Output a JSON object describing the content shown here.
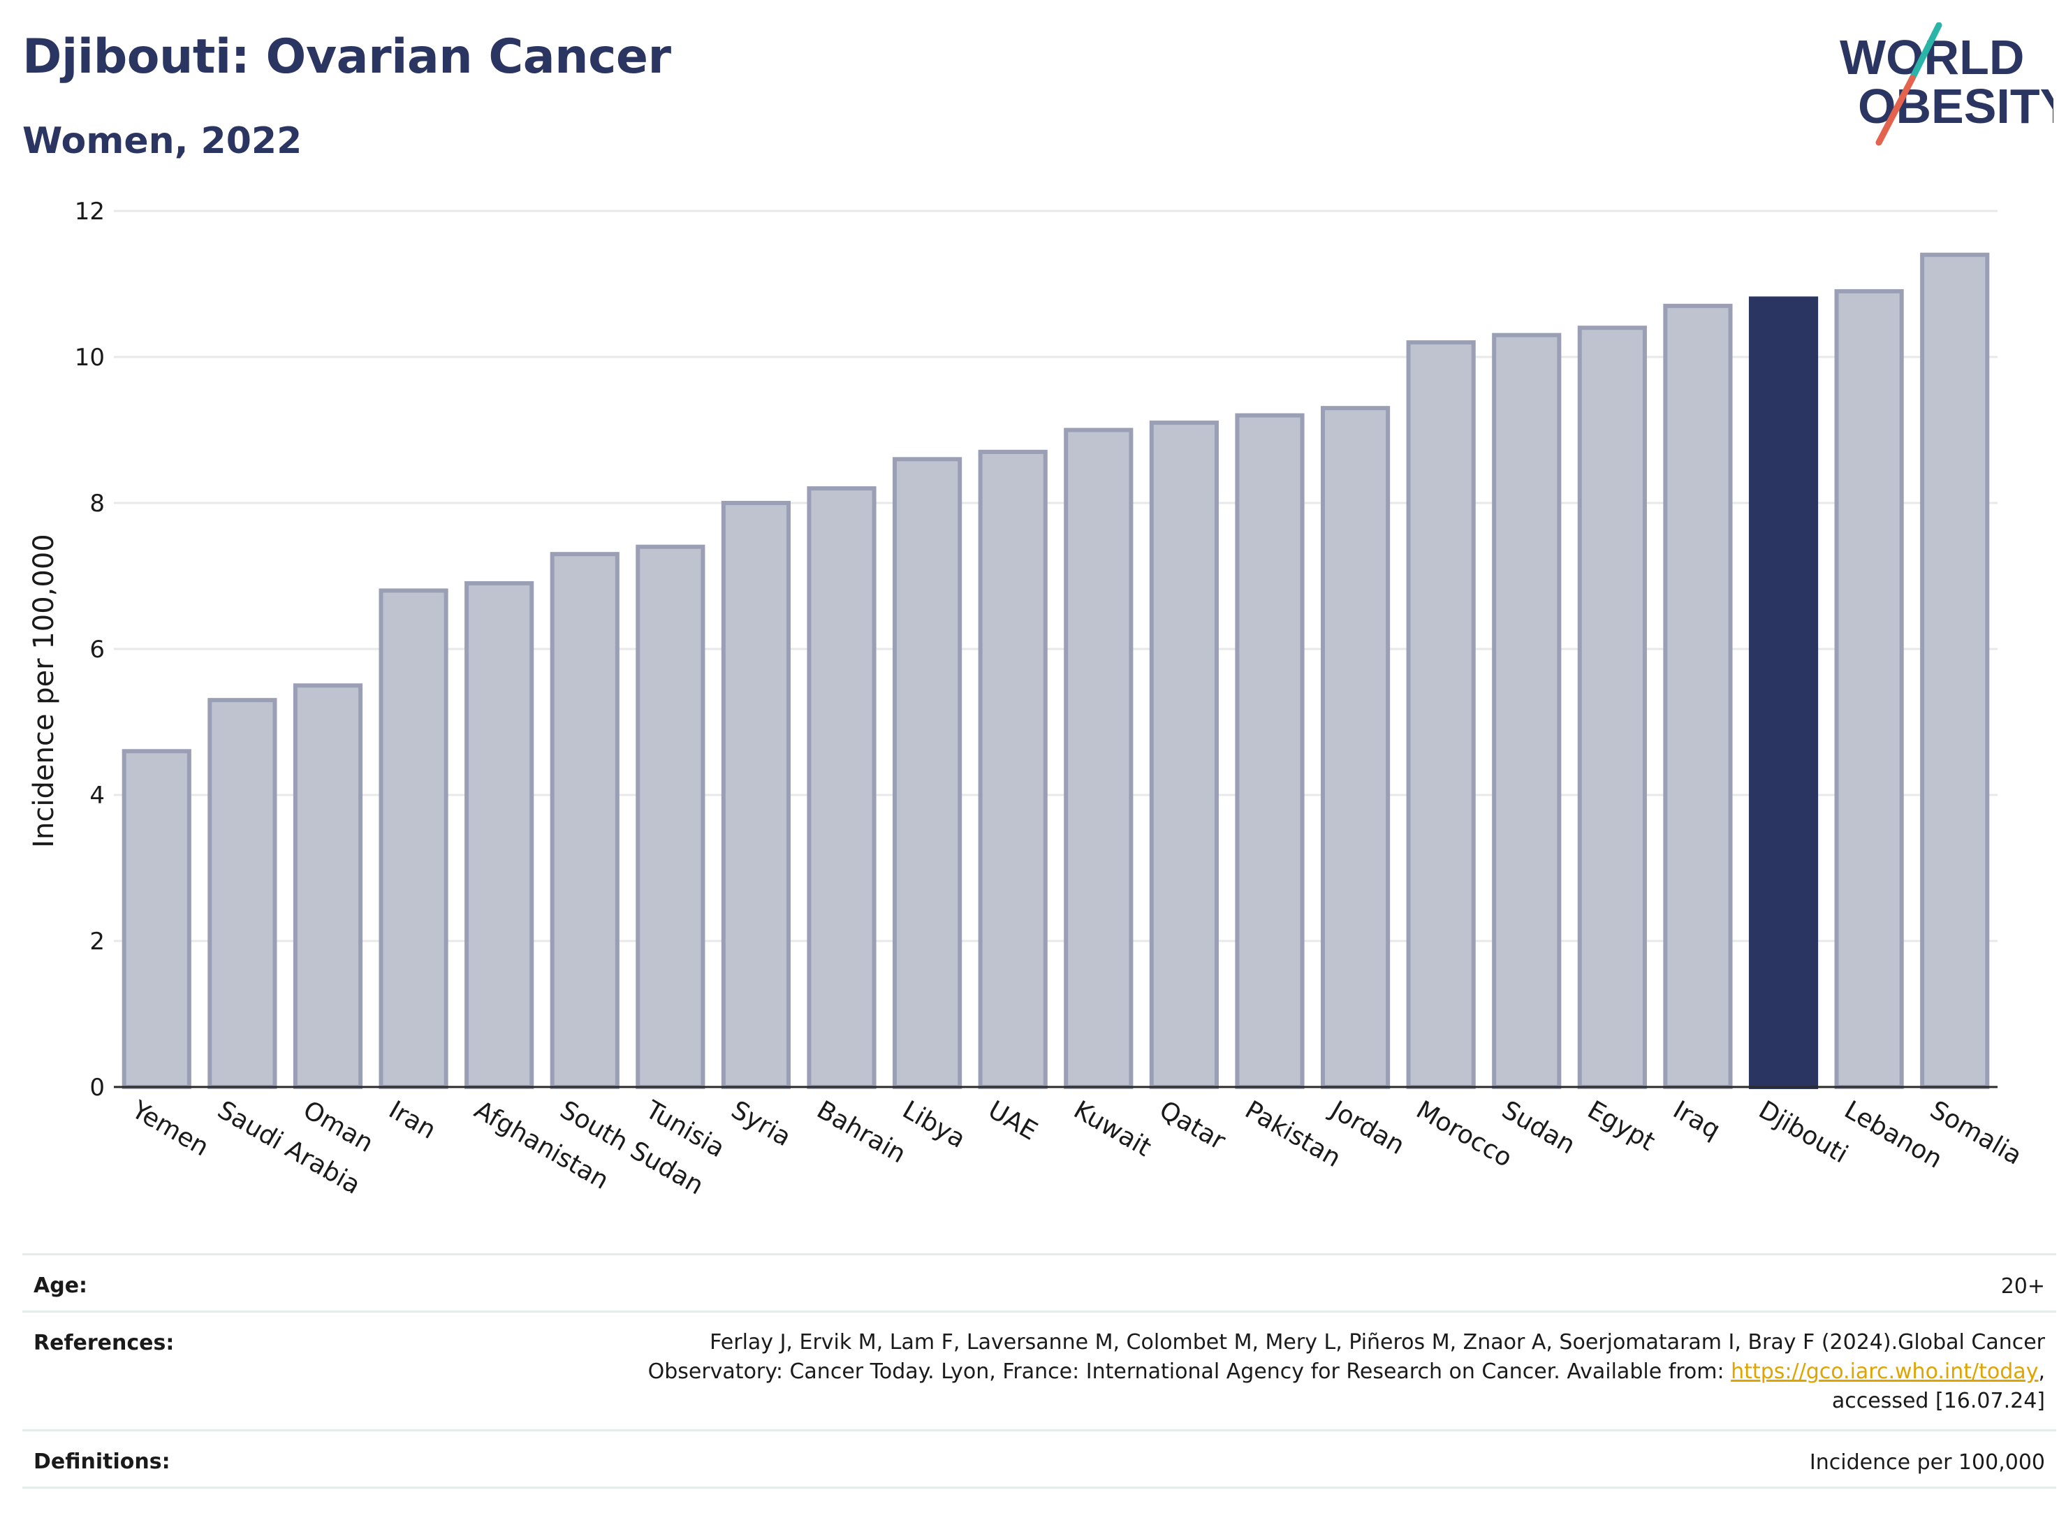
{
  "header": {
    "title": "Djibouti: Ovarian Cancer",
    "subtitle": "Women, 2022"
  },
  "logo": {
    "line1": "WORLD",
    "line2": "OBESITY",
    "colors": {
      "text": "#2b3561",
      "slash_top": "#2bb5a8",
      "slash_bottom": "#e4634f"
    }
  },
  "chart_data": {
    "type": "bar",
    "categories": [
      "Yemen",
      "Saudi Arabia",
      "Oman",
      "Iran",
      "Afghanistan",
      "South Sudan",
      "Tunisia",
      "Syria",
      "Bahrain",
      "Libya",
      "UAE",
      "Kuwait",
      "Qatar",
      "Pakistan",
      "Jordan",
      "Morocco",
      "Sudan",
      "Egypt",
      "Iraq",
      "Djibouti",
      "Lebanon",
      "Somalia"
    ],
    "values": [
      4.6,
      5.3,
      5.5,
      6.8,
      6.9,
      7.3,
      7.4,
      8.0,
      8.2,
      8.6,
      8.7,
      9.0,
      9.1,
      9.2,
      9.3,
      10.2,
      10.3,
      10.4,
      10.7,
      10.8,
      10.9,
      11.4
    ],
    "highlight": "Djibouti",
    "ylabel": "Incidence per 100,000",
    "xlabel": "",
    "ylim": [
      0,
      12
    ],
    "yticks": [
      0,
      2,
      4,
      6,
      8,
      10,
      12
    ],
    "grid": true,
    "colors": {
      "bar": "#bfc2cf",
      "bar_edge": "#9a9fb6",
      "highlight": "#2b3561",
      "grid": "#e8e8e8"
    }
  },
  "info": {
    "age_label": "Age:",
    "age_value": "20+",
    "references_label": "References:",
    "references_line1": "Ferlay J, Ervik M, Lam F, Laversanne M, Colombet M, Mery L, Piñeros M, Znaor A, Soerjomataram I, Bray F (2024).Global Cancer",
    "references_line2_pre": "Observatory: Cancer Today. Lyon, France: International Agency for Research on Cancer. Available from: ",
    "references_link": "https://gco.iarc.who.int/today",
    "references_line2_post": ",",
    "references_line3": "accessed [16.07.24]",
    "definitions_label": "Definitions:",
    "definitions_value": "Incidence per 100,000"
  }
}
